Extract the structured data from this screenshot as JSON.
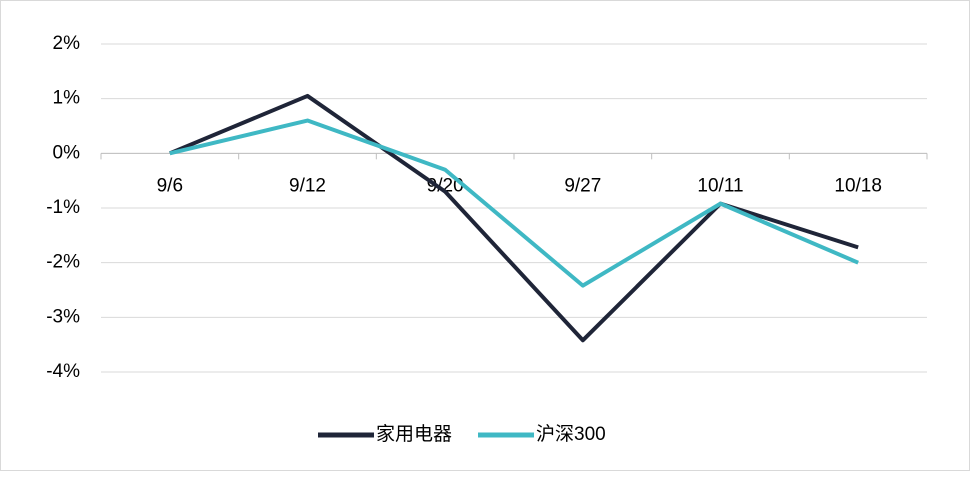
{
  "chart_data": {
    "type": "line",
    "categories": [
      "9/6",
      "9/12",
      "9/20",
      "9/27",
      "10/11",
      "10/18"
    ],
    "series": [
      {
        "name": "家用电器",
        "color": "#1f2538",
        "values": [
          0,
          1.05,
          -0.7,
          -3.42,
          -0.92,
          -1.72
        ]
      },
      {
        "name": "沪深300",
        "color": "#3fb8c4",
        "values": [
          0,
          0.6,
          -0.3,
          -2.42,
          -0.92,
          -2.0
        ]
      }
    ],
    "ylim": [
      -4,
      2
    ],
    "yticks": [
      {
        "value": -4,
        "label": "-4%"
      },
      {
        "value": -3,
        "label": "-3%"
      },
      {
        "value": -2,
        "label": "-2%"
      },
      {
        "value": -1,
        "label": "-1%"
      },
      {
        "value": 0,
        "label": "0%"
      },
      {
        "value": 1,
        "label": "1%"
      },
      {
        "value": 2,
        "label": "2%"
      }
    ],
    "grid": true,
    "legend": "bottom"
  }
}
